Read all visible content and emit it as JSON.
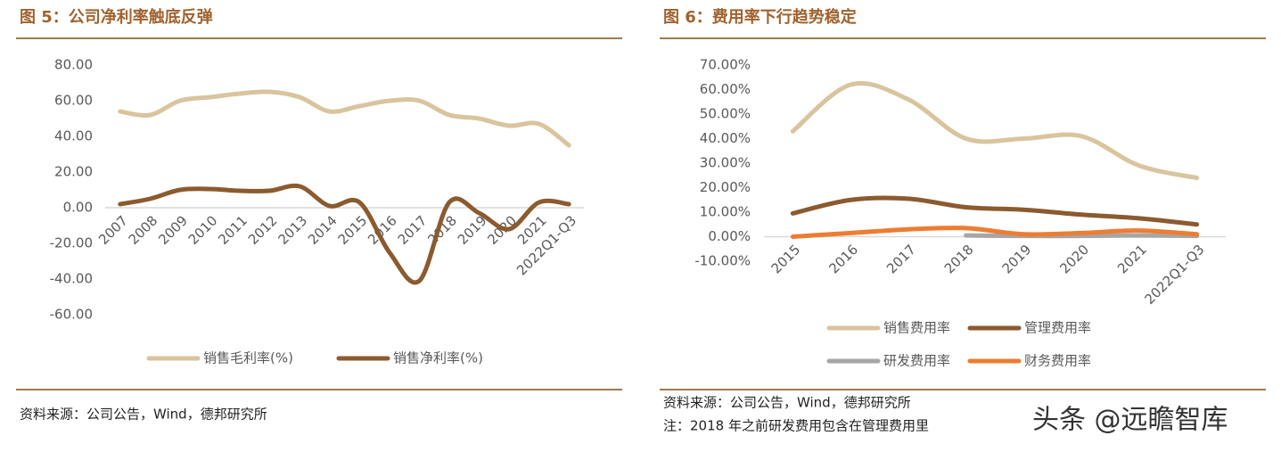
{
  "chart_data": [
    {
      "type": "line",
      "title": "图 5：公司净利率触底反弹",
      "source": "资料来源：公司公告，Wind，德邦研究所",
      "categories": [
        "2007",
        "2008",
        "2009",
        "2010",
        "2011",
        "2012",
        "2013",
        "2014",
        "2015",
        "2016",
        "2017",
        "2018",
        "2019",
        "2020",
        "2021",
        "2022Q1-Q3"
      ],
      "series": [
        {
          "name": "销售毛利率(%)",
          "color": "#d9c49e",
          "values": [
            54,
            52,
            60,
            62,
            64,
            65,
            62,
            54,
            57,
            60,
            60,
            52,
            50,
            46,
            47,
            35
          ]
        },
        {
          "name": "销售净利率(%)",
          "color": "#8b5a2f",
          "values": [
            2,
            5,
            10,
            10.5,
            9.5,
            9.5,
            12,
            1,
            3,
            -25,
            -41,
            3,
            -3,
            -12,
            3,
            2
          ]
        }
      ],
      "ylim": [
        -60,
        80
      ],
      "yticks": [
        {
          "value": 80,
          "label": "80.00"
        },
        {
          "value": 60,
          "label": "60.00"
        },
        {
          "value": 40,
          "label": "40.00"
        },
        {
          "value": 20,
          "label": "20.00"
        },
        {
          "value": 0,
          "label": "0.00"
        },
        {
          "value": -20,
          "label": "-20.00"
        },
        {
          "value": -40,
          "label": "-40.00"
        },
        {
          "value": -60,
          "label": "-60.00"
        }
      ],
      "grid": false,
      "legend": "bottom"
    },
    {
      "type": "line",
      "title": "图 6：费用率下行趋势稳定",
      "source": "资料来源：公司公告，Wind，德邦研究所",
      "note": "注：2018 年之前研发费用包含在管理费用里",
      "categories": [
        "2015",
        "2016",
        "2017",
        "2018",
        "2019",
        "2020",
        "2021",
        "2022Q1-Q3"
      ],
      "series": [
        {
          "name": "销售费用率",
          "color": "#d9c49e",
          "values": [
            43,
            62,
            56,
            40,
            40,
            41,
            29,
            24
          ]
        },
        {
          "name": "管理费用率",
          "color": "#8b5a2f",
          "values": [
            9.5,
            15,
            15.5,
            12,
            11,
            9,
            7.5,
            5
          ]
        },
        {
          "name": "研发费用率",
          "color": "#a6a6a6",
          "values": [
            null,
            null,
            null,
            0.5,
            0.3,
            0.3,
            0.5,
            0.3
          ]
        },
        {
          "name": "财务费用率",
          "color": "#ed7d31",
          "values": [
            0,
            1.5,
            3,
            3.5,
            1,
            1.5,
            2.5,
            1
          ]
        }
      ],
      "ylim": [
        -10,
        70
      ],
      "yticks": [
        {
          "value": 70,
          "label": "70.00%"
        },
        {
          "value": 60,
          "label": "60.00%"
        },
        {
          "value": 50,
          "label": "50.00%"
        },
        {
          "value": 40,
          "label": "40.00%"
        },
        {
          "value": 30,
          "label": "30.00%"
        },
        {
          "value": 20,
          "label": "20.00%"
        },
        {
          "value": 10,
          "label": "10.00%"
        },
        {
          "value": 0,
          "label": "0.00%"
        },
        {
          "value": -10,
          "label": "-10.00%"
        }
      ],
      "grid": false,
      "legend": "bottom"
    }
  ],
  "watermark": "头条 @远瞻智库"
}
